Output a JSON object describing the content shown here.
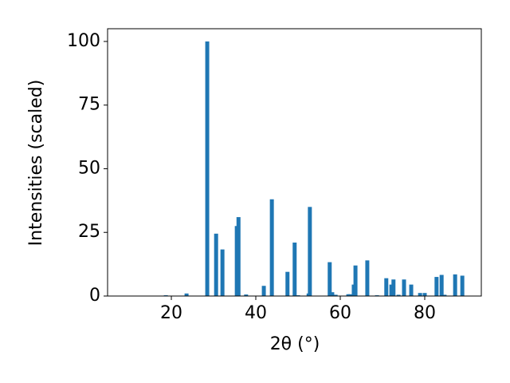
{
  "chart_data": {
    "type": "bar",
    "xlabel": "2θ (°)",
    "ylabel": "Intensities (scaled)",
    "x": [
      18.7,
      23.6,
      28.5,
      30.6,
      32.1,
      35.5,
      35.9,
      37.7,
      41.9,
      43.8,
      47.5,
      49.2,
      50.0,
      52.5,
      52.8,
      57.5,
      58.1,
      58.9,
      61.9,
      62.3,
      63.2,
      63.6,
      66.4,
      68.7,
      70.9,
      72.1,
      72.6,
      73.8,
      75.1,
      76.8,
      78.9,
      80.0,
      82.8,
      84.0,
      84.7,
      87.2,
      88.9
    ],
    "values": [
      0.3,
      1,
      100,
      24.5,
      18.3,
      27.5,
      31,
      0.6,
      4,
      38,
      9.5,
      21,
      0.3,
      1,
      35,
      13.3,
      1.5,
      0.5,
      0.7,
      0.7,
      4.5,
      12,
      14,
      0.3,
      7,
      4.5,
      6.5,
      0.5,
      6.5,
      4.5,
      1.2,
      1.2,
      7.5,
      8.3,
      0.5,
      8.5,
      8
    ],
    "color": "#1f77b4",
    "xlim": [
      4.9,
      93.4
    ],
    "ylim": [
      0,
      105
    ],
    "xticks": [
      20,
      40,
      60,
      80
    ],
    "yticks": [
      0,
      25,
      50,
      75,
      100
    ],
    "grid": false
  }
}
